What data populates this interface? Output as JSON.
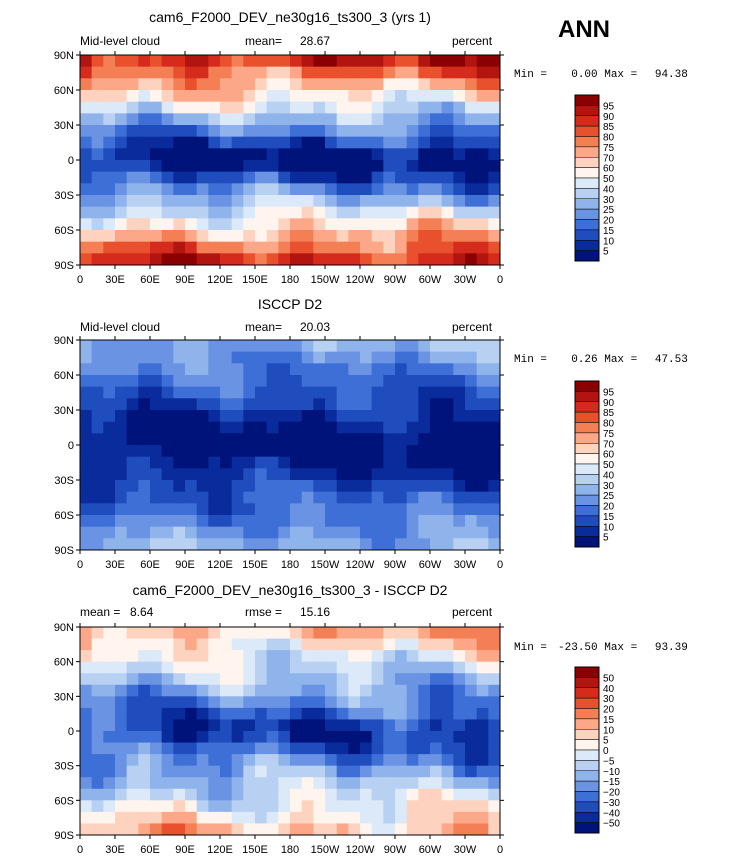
{
  "season": "ANN",
  "chart_data": [
    {
      "type": "heatmap",
      "title": "cam6_F2000_DEV_ne30g16_ts300_3 (yrs 1)",
      "left_label": "Mid-level cloud",
      "stat1": "mean=",
      "stat1_value": "28.67",
      "stat2": "",
      "stat2_value": "",
      "units": "percent",
      "min_label": "Min =",
      "min_value": "0.00",
      "max_label": "Max =",
      "max_value": "94.38",
      "y_ticks": [
        "90N",
        "60N",
        "30N",
        "0",
        "30S",
        "60S",
        "90S"
      ],
      "x_ticks": [
        "0",
        "30E",
        "60E",
        "90E",
        "120E",
        "150E",
        "180",
        "150W",
        "120W",
        "90W",
        "60W",
        "30W",
        "0"
      ],
      "levels": [
        "95",
        "90",
        "85",
        "80",
        "75",
        "70",
        "60",
        "50",
        "40",
        "30",
        "25",
        "20",
        "15",
        "10",
        "5"
      ],
      "colors": [
        "#8b0000",
        "#b2150f",
        "#d42b1d",
        "#e8502e",
        "#f57f55",
        "#fca788",
        "#fdd3bf",
        "#fff5ee",
        "#dce9f8",
        "#b8d1f2",
        "#8fb4eb",
        "#6a93e3",
        "#3e6fd6",
        "#1f4dbe",
        "#0a2b9c",
        "#00137a"
      ]
    },
    {
      "type": "heatmap",
      "title": "ISCCP D2",
      "left_label": "Mid-level cloud",
      "stat1": "mean=",
      "stat1_value": "20.03",
      "stat2": "",
      "stat2_value": "",
      "units": "percent",
      "min_label": "Min =",
      "min_value": "0.26",
      "max_label": "Max =",
      "max_value": "47.53",
      "y_ticks": [
        "90N",
        "60N",
        "30N",
        "0",
        "30S",
        "60S",
        "90S"
      ],
      "x_ticks": [
        "0",
        "30E",
        "60E",
        "90E",
        "120E",
        "150E",
        "180",
        "150W",
        "120W",
        "90W",
        "60W",
        "30W",
        "0"
      ],
      "levels": [
        "95",
        "90",
        "85",
        "80",
        "75",
        "70",
        "60",
        "50",
        "40",
        "30",
        "25",
        "20",
        "15",
        "10",
        "5"
      ],
      "colors": [
        "#8b0000",
        "#b2150f",
        "#d42b1d",
        "#e8502e",
        "#f57f55",
        "#fca788",
        "#fdd3bf",
        "#fff5ee",
        "#dce9f8",
        "#b8d1f2",
        "#8fb4eb",
        "#6a93e3",
        "#3e6fd6",
        "#1f4dbe",
        "#0a2b9c",
        "#00137a"
      ]
    },
    {
      "type": "heatmap",
      "title": "cam6_F2000_DEV_ne30g16_ts300_3 - ISCCP D2",
      "left_label": "",
      "stat1": "mean =",
      "stat1_value": "8.64",
      "stat2": "rmse =",
      "stat2_value": "15.16",
      "units": "percent",
      "min_label": "Min =",
      "min_value": "-23.50",
      "max_label": "Max =",
      "max_value": "93.39",
      "y_ticks": [
        "90N",
        "60N",
        "30N",
        "0",
        "30S",
        "60S",
        "90S"
      ],
      "x_ticks": [
        "0",
        "30E",
        "60E",
        "90E",
        "120E",
        "150E",
        "180",
        "150W",
        "120W",
        "90W",
        "60W",
        "30W",
        "0"
      ],
      "levels": [
        "50",
        "40",
        "30",
        "20",
        "15",
        "10",
        "5",
        "0",
        "−5",
        "−10",
        "−15",
        "−20",
        "−30",
        "−40",
        "−50"
      ],
      "colors": [
        "#8b0000",
        "#b2150f",
        "#d42b1d",
        "#e8502e",
        "#f57f55",
        "#fca788",
        "#fdd3bf",
        "#fff5ee",
        "#dce9f8",
        "#b8d1f2",
        "#8fb4eb",
        "#6a93e3",
        "#3e6fd6",
        "#1f4dbe",
        "#0a2b9c",
        "#00137a"
      ]
    }
  ]
}
